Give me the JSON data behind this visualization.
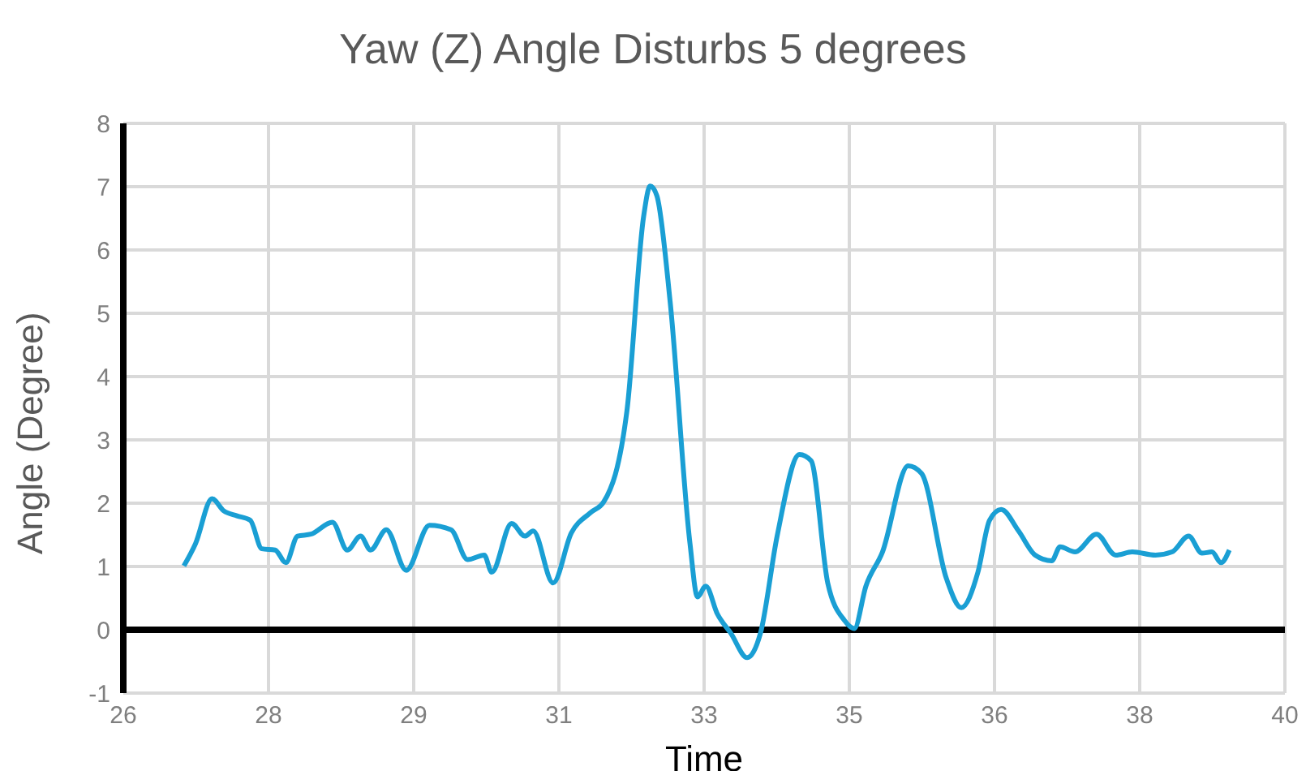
{
  "chart_data": {
    "type": "line",
    "title": "Yaw (Z) Angle Disturbs 5 degrees",
    "xlabel": "Time",
    "ylabel": "Angle (Degree)",
    "x": [
      26.73,
      26.87,
      27.07,
      27.21,
      27.37,
      27.53,
      27.67,
      27.83,
      27.96,
      28.1,
      28.26,
      28.52,
      28.7,
      28.86,
      28.98,
      29.17,
      29.41,
      29.69,
      29.95,
      30.15,
      30.35,
      30.44,
      30.68,
      30.84,
      30.94,
      31.18,
      31.4,
      31.63,
      31.79,
      32.07,
      32.27,
      32.35,
      32.43,
      32.59,
      32.83,
      32.92,
      33.02,
      33.16,
      33.32,
      33.52,
      33.68,
      33.88,
      34.15,
      34.29,
      34.49,
      34.69,
      34.81,
      34.95,
      35.15,
      35.46,
      35.62,
      35.92,
      36.1,
      36.3,
      36.44,
      36.58,
      36.79,
      36.99,
      37.19,
      37.29,
      37.47,
      37.73,
      37.96,
      38.16,
      38.44,
      38.64,
      38.84,
      39.0,
      39.12,
      39.23,
      39.33
    ],
    "series": [
      {
        "color": "#1a9fd4",
        "values": [
          1.01,
          1.36,
          2.07,
          1.88,
          1.8,
          1.73,
          1.28,
          1.26,
          1.06,
          1.48,
          1.51,
          1.7,
          1.26,
          1.48,
          1.26,
          1.58,
          0.94,
          1.65,
          1.58,
          1.11,
          1.18,
          0.91,
          1.68,
          1.48,
          1.56,
          0.74,
          1.53,
          1.85,
          2.02,
          3.46,
          6.52,
          7.01,
          6.86,
          5.19,
          1.36,
          0.52,
          0.69,
          0.25,
          -0.05,
          -0.44,
          -0.05,
          1.48,
          2.77,
          2.67,
          0.74,
          0.15,
          0.02,
          0.69,
          1.23,
          2.59,
          2.47,
          0.81,
          0.35,
          0.91,
          1.73,
          1.9,
          1.56,
          1.18,
          1.09,
          1.31,
          1.23,
          1.51,
          1.18,
          1.23,
          1.18,
          1.23,
          1.48,
          1.21,
          1.23,
          1.06,
          1.26
        ]
      }
    ],
    "xlim": [
      26,
      40
    ],
    "xticks": [
      26,
      {
        "value": 27.75,
        "label": "28"
      },
      {
        "value": 29.5,
        "label": "29"
      },
      {
        "value": 31.25,
        "label": "31"
      },
      33,
      {
        "value": 34.75,
        "label": "35"
      },
      {
        "value": 36.5,
        "label": "36"
      },
      {
        "value": 38.25,
        "label": "38"
      },
      40
    ],
    "ylim": [
      -1,
      8
    ],
    "yticks": [
      -1,
      0,
      1,
      2,
      3,
      4,
      5,
      6,
      7,
      8
    ],
    "grid": true,
    "legend": false,
    "marker": "none",
    "line_style": "solid",
    "ref_lines": [
      {
        "axis": "y",
        "value": 0,
        "color": "#000000"
      }
    ]
  }
}
